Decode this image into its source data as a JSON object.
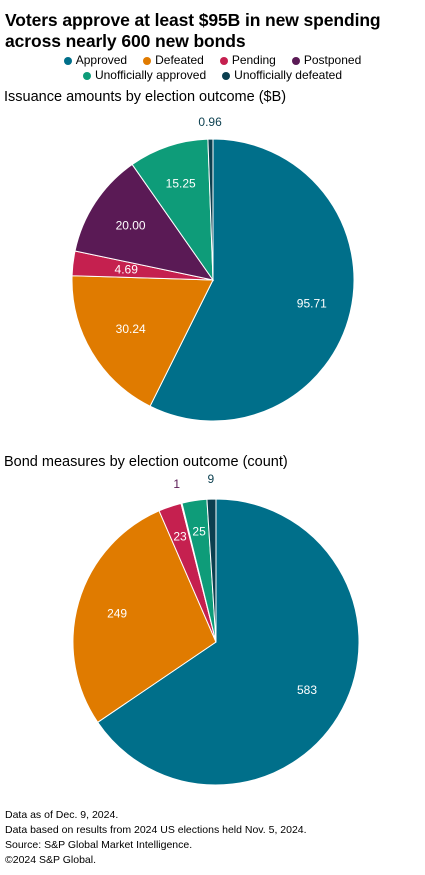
{
  "title": "Voters approve at least $95B in new spending across nearly 600 new bonds",
  "legend": [
    {
      "label": "Approved",
      "color": "#006f8a"
    },
    {
      "label": "Defeated",
      "color": "#e07b00"
    },
    {
      "label": "Pending",
      "color": "#c5204f"
    },
    {
      "label": "Postponed",
      "color": "#5a1a55"
    },
    {
      "label": "Unofficially approved",
      "color": "#0e9c79"
    },
    {
      "label": "Unofficially defeated",
      "color": "#0b3f4f"
    }
  ],
  "chart_data": [
    {
      "type": "pie",
      "title": "Issuance amounts by election outcome ($B)",
      "categories": [
        "Approved",
        "Defeated",
        "Pending",
        "Postponed",
        "Unofficially approved",
        "Unofficially defeated"
      ],
      "values": [
        95.71,
        30.24,
        4.69,
        20.0,
        15.25,
        0.96
      ],
      "labels": [
        "95.71",
        "30.24",
        "4.69",
        "20.00",
        "15.25",
        "0.96"
      ]
    },
    {
      "type": "pie",
      "title": "Bond measures by election outcome (count)",
      "categories": [
        "Approved",
        "Defeated",
        "Pending",
        "Postponed",
        "Unofficially approved",
        "Unofficially defeated"
      ],
      "values": [
        583,
        249,
        23,
        1,
        25,
        9
      ],
      "labels": [
        "583",
        "249",
        "23",
        "1",
        "25",
        "9"
      ]
    }
  ],
  "footnotes": [
    "Data as of Dec. 9, 2024.",
    "Data based on results from 2024 US elections held Nov. 5, 2024.",
    "Source: S&P Global Market Intelligence.",
    "©2024 S&P Global."
  ]
}
